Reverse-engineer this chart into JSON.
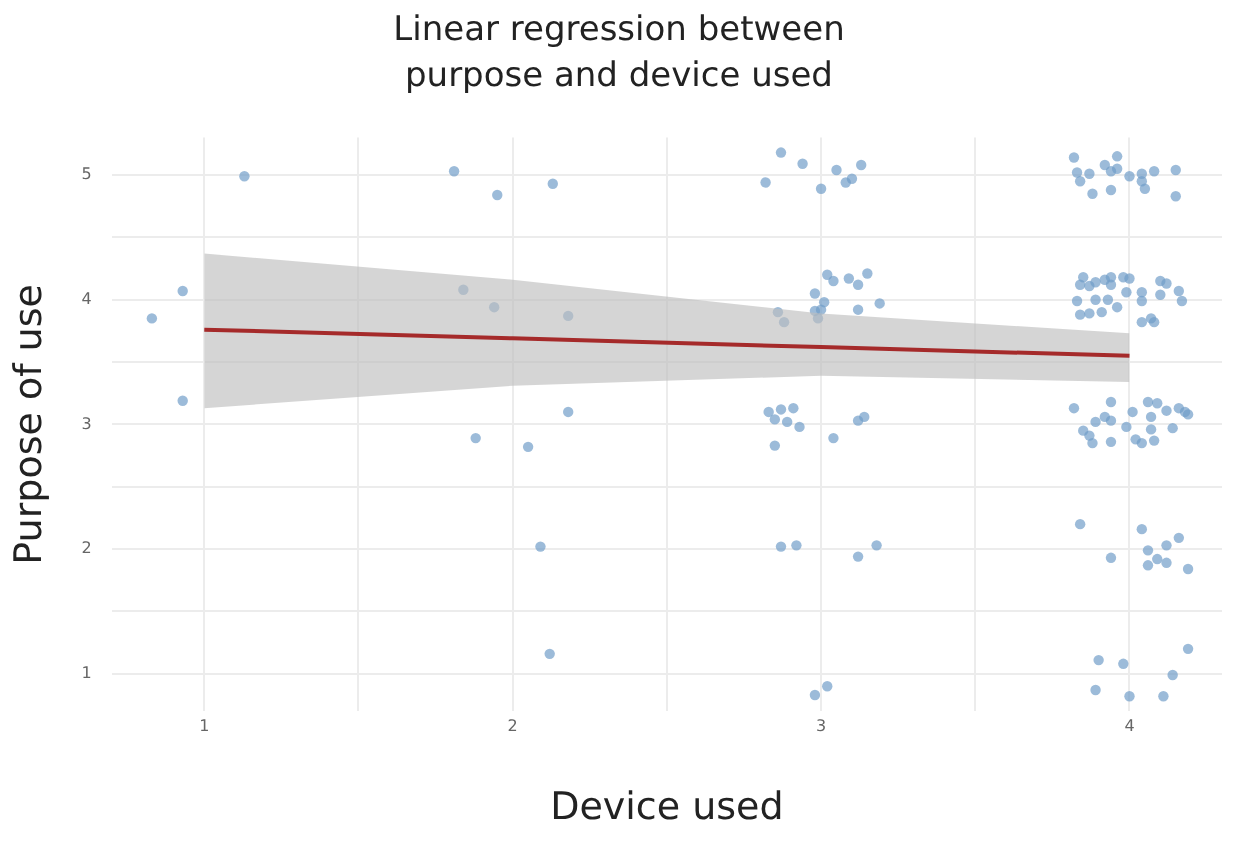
{
  "chart_data": {
    "type": "scatter",
    "title": "Linear regression between purpose and device used",
    "xlabel": "Device used",
    "ylabel": "Purpose of use",
    "xlim": [
      0.7,
      4.3
    ],
    "xticks": [
      1,
      {
        "value": 1.5,
        "label": null
      },
      2,
      {
        "value": 2.5,
        "label": null
      },
      3,
      {
        "value": 3.5,
        "label": null
      },
      4
    ],
    "ylim": [
      0.7,
      5.3
    ],
    "yticks": [
      1,
      {
        "value": 1.5,
        "label": null
      },
      2,
      {
        "value": 2.5,
        "label": null
      },
      3,
      {
        "value": 3.5,
        "label": null
      },
      4,
      {
        "value": 4.5,
        "label": null
      },
      5
    ],
    "grid": true,
    "legend": false,
    "marker": "circle",
    "series": [
      {
        "color": "#6f9cc8",
        "x": [
          0.83,
          0.93,
          0.93,
          1.13,
          1.81,
          1.95,
          2.13,
          1.84,
          1.94,
          2.18,
          2.18,
          1.88,
          2.05,
          2.09,
          2.12,
          2.87,
          2.82,
          2.94,
          3.0,
          3.05,
          3.13,
          3.08,
          3.1,
          3.02,
          3.04,
          3.09,
          3.15,
          3.12,
          2.98,
          3.01,
          3.19,
          3.12,
          2.98,
          3.0,
          2.99,
          2.86,
          2.88,
          2.83,
          2.87,
          2.91,
          2.85,
          2.89,
          2.93,
          2.85,
          3.04,
          3.12,
          3.14,
          2.87,
          2.92,
          3.12,
          3.18,
          2.98,
          3.02,
          3.82,
          3.96,
          3.83,
          3.87,
          3.84,
          3.92,
          3.94,
          3.96,
          4.0,
          4.04,
          4.08,
          4.04,
          4.05,
          4.15,
          4.15,
          3.88,
          3.94,
          3.85,
          3.84,
          3.87,
          3.89,
          3.92,
          3.94,
          3.94,
          3.98,
          4.0,
          3.99,
          4.04,
          4.1,
          4.12,
          4.16,
          4.04,
          4.1,
          4.17,
          3.83,
          3.89,
          3.93,
          3.96,
          3.84,
          3.87,
          3.91,
          4.04,
          4.07,
          4.08,
          3.82,
          3.94,
          4.06,
          4.09,
          4.16,
          4.12,
          4.19,
          4.18,
          4.01,
          3.92,
          3.94,
          3.89,
          3.85,
          3.87,
          3.88,
          3.94,
          3.99,
          4.07,
          4.07,
          4.14,
          4.02,
          4.04,
          4.08,
          3.84,
          4.04,
          4.16,
          4.12,
          4.06,
          3.94,
          4.09,
          4.06,
          4.12,
          4.19,
          3.9,
          3.98,
          4.19,
          4.14,
          3.89,
          4.0,
          4.11
        ],
        "values": [
          3.85,
          4.07,
          3.19,
          4.99,
          5.03,
          4.84,
          4.93,
          4.08,
          3.94,
          3.87,
          3.1,
          2.89,
          2.82,
          2.02,
          1.16,
          5.18,
          4.94,
          5.09,
          4.89,
          5.04,
          5.08,
          4.94,
          4.97,
          4.2,
          4.15,
          4.17,
          4.21,
          4.12,
          4.05,
          3.98,
          3.97,
          3.92,
          3.91,
          3.92,
          3.85,
          3.9,
          3.82,
          3.1,
          3.12,
          3.13,
          3.04,
          3.02,
          2.98,
          2.83,
          2.89,
          3.03,
          3.06,
          2.02,
          2.03,
          1.94,
          2.03,
          0.83,
          0.9,
          5.14,
          5.15,
          5.02,
          5.01,
          4.95,
          5.08,
          5.03,
          5.05,
          4.99,
          5.01,
          5.03,
          4.95,
          4.89,
          5.04,
          4.83,
          4.85,
          4.88,
          4.18,
          4.12,
          4.11,
          4.14,
          4.16,
          4.18,
          4.12,
          4.18,
          4.17,
          4.06,
          4.06,
          4.15,
          4.13,
          4.07,
          3.99,
          4.04,
          3.99,
          3.99,
          4.0,
          4.0,
          3.94,
          3.88,
          3.89,
          3.9,
          3.82,
          3.85,
          3.82,
          3.13,
          3.18,
          3.18,
          3.17,
          3.13,
          3.11,
          3.08,
          3.1,
          3.1,
          3.06,
          3.03,
          3.02,
          2.95,
          2.91,
          2.85,
          2.86,
          2.98,
          3.06,
          2.96,
          2.97,
          2.88,
          2.85,
          2.87,
          2.2,
          2.16,
          2.09,
          2.03,
          1.99,
          1.93,
          1.92,
          1.87,
          1.89,
          1.84,
          1.11,
          1.08,
          1.2,
          0.99,
          0.87,
          0.82,
          0.82
        ]
      },
      {
        "type": "line",
        "marker": "none",
        "color": "#a52a2a",
        "x": [
          1,
          2,
          3,
          4
        ],
        "values": [
          3.76,
          3.69,
          3.62,
          3.55
        ],
        "lower": [
          3.13,
          3.31,
          3.39,
          3.34
        ],
        "upper": [
          4.37,
          4.16,
          3.89,
          3.73
        ]
      }
    ]
  }
}
